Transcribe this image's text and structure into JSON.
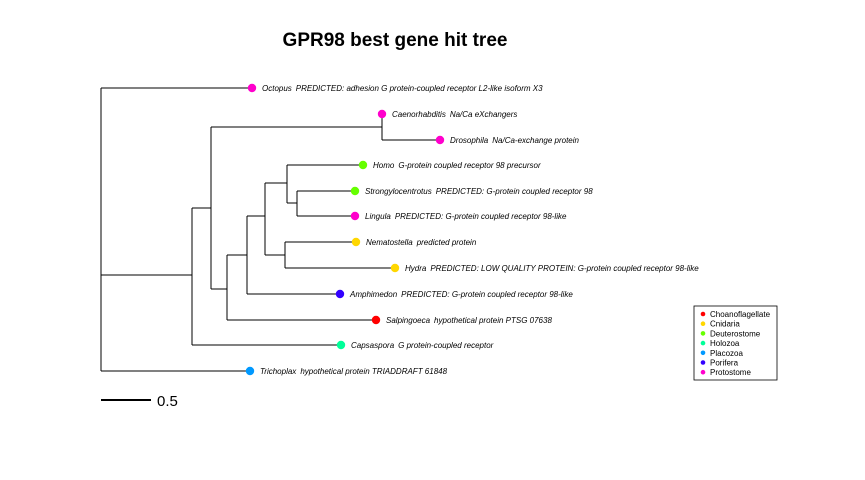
{
  "title": "GPR98 best gene hit tree",
  "scale_bar": {
    "label": "0.5",
    "length": 0.5
  },
  "groups": [
    {
      "name": "Choanoflagellate",
      "color": "#ff0000"
    },
    {
      "name": "Cnidaria",
      "color": "#ffd700"
    },
    {
      "name": "Deuterostome",
      "color": "#66ff00"
    },
    {
      "name": "Holozoa",
      "color": "#00ff99"
    },
    {
      "name": "Placozoa",
      "color": "#0099ff"
    },
    {
      "name": "Porifera",
      "color": "#3300ff"
    },
    {
      "name": "Protostome",
      "color": "#ff00cc"
    }
  ],
  "leaves": [
    {
      "genus": "Octopus",
      "description": "PREDICTED: adhesion G protein-coupled receptor L2-like isoform X3",
      "group": "Protostome"
    },
    {
      "genus": "Caenorhabditis",
      "description": "Na/Ca eXchangers",
      "group": "Protostome"
    },
    {
      "genus": "Drosophila",
      "description": "Na/Ca-exchange protein",
      "group": "Protostome"
    },
    {
      "genus": "Homo",
      "description": "G-protein coupled receptor 98 precursor",
      "group": "Deuterostome"
    },
    {
      "genus": "Strongylocentrotus",
      "description": "PREDICTED: G-protein coupled receptor 98",
      "group": "Deuterostome"
    },
    {
      "genus": "Lingula",
      "description": "PREDICTED: G-protein coupled receptor 98-like",
      "group": "Protostome"
    },
    {
      "genus": "Nematostella",
      "description": "predicted protein",
      "group": "Cnidaria"
    },
    {
      "genus": "Hydra",
      "description": "PREDICTED: LOW QUALITY PROTEIN: G-protein coupled receptor 98-like",
      "group": "Cnidaria"
    },
    {
      "genus": "Amphimedon",
      "description": "PREDICTED: G-protein coupled receptor 98-like",
      "group": "Porifera"
    },
    {
      "genus": "Salpingoeca",
      "description": "hypothetical protein PTSG 07638",
      "group": "Choanoflagellate"
    },
    {
      "genus": "Capsaspora",
      "description": "G protein-coupled receptor",
      "group": "Holozoa"
    },
    {
      "genus": "Trichoplax",
      "description": "hypothetical protein TRIADDRAFT 61848",
      "group": "Placozoa"
    }
  ]
}
